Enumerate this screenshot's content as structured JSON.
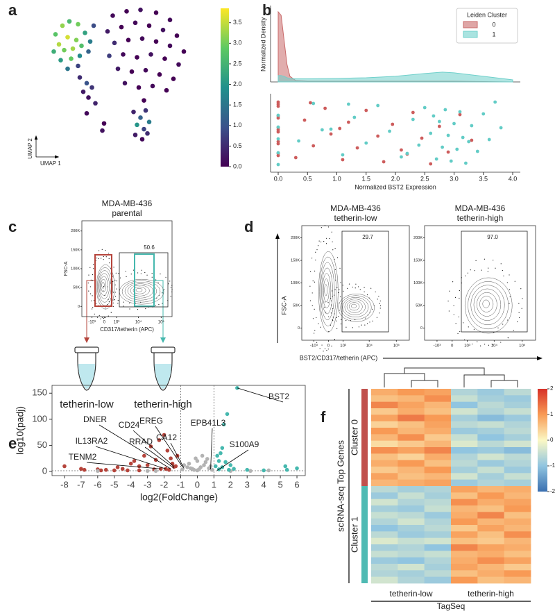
{
  "panel_letters": [
    "a",
    "b",
    "c",
    "d",
    "e",
    "f"
  ],
  "tubes": [
    "tetherin-low",
    "tetherin-high"
  ],
  "chart_data": [
    {
      "type": "scatter",
      "x_label": "UMAP 1",
      "y_label": "UMAP 2",
      "xlim": [
        0,
        10
      ],
      "ylim": [
        0,
        10
      ],
      "x": [
        1.2,
        1.6,
        2.0,
        2.5,
        1.4,
        1.9,
        2.4,
        2.9,
        1.1,
        1.7,
        2.2,
        2.7,
        3.2,
        1.5,
        2.1,
        2.6,
        3.1,
        1.9,
        2.5,
        3.4,
        2.6,
        3.0,
        2.8,
        3.3,
        3.1,
        3.5,
        3.0,
        3.9,
        4.0,
        4.5,
        5.3,
        6.1,
        7.0,
        7.8,
        4.2,
        5.0,
        5.8,
        6.6,
        7.4,
        8.2,
        4.6,
        5.4,
        6.2,
        7.0,
        7.8,
        8.6,
        4.3,
        5.1,
        5.9,
        6.7,
        7.5,
        8.3,
        4.8,
        5.6,
        6.4,
        7.2,
        8.0,
        5.2,
        6.0,
        6.8,
        7.6,
        6.3,
        5.7,
        6.1,
        6.4,
        5.9,
        6.3,
        6.6,
        5.8,
        6.2,
        6.5
      ],
      "y": [
        8.0,
        8.6,
        8.9,
        8.7,
        7.3,
        7.8,
        7.6,
        8.1,
        6.8,
        6.9,
        7.0,
        7.2,
        7.5,
        6.2,
        6.3,
        6.5,
        6.8,
        5.6,
        5.8,
        8.6,
        5.0,
        4.6,
        4.0,
        4.3,
        3.6,
        3.2,
        2.5,
        1.3,
        1.8,
        9.3,
        9.6,
        9.7,
        9.5,
        9.0,
        8.2,
        8.5,
        8.8,
        8.6,
        8.3,
        7.9,
        7.4,
        7.6,
        7.7,
        7.5,
        7.2,
        6.8,
        6.5,
        6.6,
        6.4,
        6.6,
        6.3,
        5.9,
        5.6,
        5.4,
        5.5,
        5.2,
        4.9,
        4.6,
        4.3,
        4.4,
        4.1,
        3.4,
        2.6,
        2.2,
        2.7,
        1.7,
        1.4,
        1.9,
        1.0,
        0.7,
        1.1
      ],
      "values": [
        2.8,
        3.2,
        2.6,
        3.0,
        3.4,
        3.6,
        3.1,
        2.2,
        2.4,
        3.0,
        3.3,
        2.7,
        1.6,
        2.1,
        2.9,
        1.8,
        1.2,
        1.5,
        0.8,
        0.9,
        0.5,
        1.0,
        0.3,
        0.6,
        0.2,
        0.4,
        0.1,
        0.2,
        0.0,
        0.1,
        0.0,
        0.2,
        0.0,
        0.1,
        0.3,
        0.0,
        0.1,
        0.0,
        0.2,
        0.0,
        0.5,
        0.0,
        0.1,
        0.0,
        0.1,
        0.0,
        0.7,
        0.1,
        0.0,
        0.2,
        0.0,
        0.1,
        0.3,
        0.0,
        0.1,
        0.0,
        0.0,
        0.2,
        0.0,
        0.1,
        0.0,
        0.0,
        0.4,
        1.2,
        0.6,
        2.0,
        0.8,
        1.6,
        0.3,
        0.1,
        0.5
      ],
      "clim": [
        0,
        3.85
      ],
      "cticks": [
        {
          "value": 0,
          "label": "0.0"
        },
        0.5,
        {
          "value": 1,
          "label": "1.0"
        },
        1.5,
        {
          "value": 2,
          "label": "2.0"
        },
        2.5,
        {
          "value": 3,
          "label": "3.0"
        },
        3.5
      ]
    },
    {
      "type": "area",
      "y_label": "Normalized Density",
      "legend_title": "Leiden Cluster",
      "xlim": [
        -0.13,
        4.13
      ],
      "ylim": [
        0,
        1.05
      ],
      "x": [
        0,
        0.05,
        0.1,
        0.15,
        0.2,
        0.3,
        0.5,
        1,
        1.5,
        2,
        2.5,
        2.8,
        3,
        3.5,
        4
      ],
      "series": [
        {
          "name": "0",
          "color": "#c96a6a",
          "values": [
            1.0,
            0.95,
            0.6,
            0.25,
            0.08,
            0.02,
            0.01,
            0.01,
            0.01,
            0.01,
            0.01,
            0.01,
            0.01,
            0.005,
            0
          ]
        },
        {
          "name": "1",
          "color": "#6fd0cb",
          "values": [
            0.09,
            0.09,
            0.08,
            0.06,
            0.05,
            0.045,
            0.045,
            0.05,
            0.06,
            0.08,
            0.12,
            0.14,
            0.13,
            0.08,
            0.03
          ]
        }
      ]
    },
    {
      "type": "strip",
      "x_label": "Normalized BST2 Expression",
      "xlim": [
        -0.13,
        4.13
      ],
      "xticks": [
        {
          "value": 0,
          "label": "0.0"
        },
        0.5,
        {
          "value": 1,
          "label": "1.0"
        },
        1.5,
        {
          "value": 2,
          "label": "2.0"
        },
        2.5,
        {
          "value": 3,
          "label": "3.0"
        },
        3.5,
        {
          "value": 4,
          "label": "4.0"
        }
      ],
      "series": [
        {
          "color": "#cd5c5c",
          "values": [
            0,
            0,
            0,
            0,
            0,
            0,
            0,
            0,
            0,
            0,
            0,
            0,
            0.3,
            0.45,
            0.6,
            0.8,
            0.9,
            1.1,
            1.2,
            1.35,
            1.5,
            1.7,
            1.8,
            1.95,
            2.1,
            2.3,
            2.45,
            2.6,
            2.75,
            2.9,
            3.1,
            3.3,
            0.55,
            1.05,
            2.2
          ]
        },
        {
          "color": "#62ccc6",
          "values": [
            0,
            0,
            0,
            0,
            0,
            0.35,
            0.6,
            0.9,
            1.1,
            1.3,
            1.5,
            1.7,
            1.9,
            2.1,
            2.3,
            2.4,
            2.5,
            2.6,
            2.7,
            2.75,
            2.8,
            2.85,
            2.9,
            2.95,
            3.0,
            3.05,
            3.1,
            3.15,
            3.2,
            3.3,
            3.4,
            3.5,
            3.6,
            3.7,
            3.8,
            2.2,
            2.65,
            3.25,
            1.2,
            0.75
          ]
        }
      ]
    },
    {
      "type": "contour",
      "title": "MDA-MB-436",
      "subtitle": "parental",
      "x_label": "CD317/tetherin (APC)",
      "y_label": "FSC-A",
      "xscale": "biexponential",
      "xlim": [
        -3000,
        300000
      ],
      "ylim": [
        -27000,
        227000
      ],
      "xticks": [
        {
          "value": -1000,
          "label": "-10³"
        },
        0,
        {
          "value": 1000,
          "label": "10³"
        },
        {
          "value": 10000,
          "label": "10⁴"
        },
        {
          "value": 100000,
          "label": "10⁵"
        }
      ],
      "yticks": [
        0,
        {
          "value": 50000,
          "label": "50K"
        },
        {
          "value": 100000,
          "label": "100K"
        },
        {
          "value": 150000,
          "label": "150K"
        },
        {
          "value": 200000,
          "label": "200K"
        }
      ],
      "gate_label": "50.6"
    },
    {
      "type": "contour",
      "title": "MDA-MB-436",
      "subtitle": "tetherin-low",
      "x_label": "BST2/CD317/tetherin (APC)",
      "y_label": "FSC-A",
      "xscale": "biexponential",
      "xlim": [
        -3000,
        300000
      ],
      "ylim": [
        -27000,
        227000
      ],
      "xticks": [
        {
          "value": -1000,
          "label": "-10³"
        },
        0,
        {
          "value": 1000,
          "label": "10³"
        },
        {
          "value": 10000,
          "label": "10⁴"
        },
        {
          "value": 100000,
          "label": "10⁵"
        }
      ],
      "yticks": [
        0,
        {
          "value": 50000,
          "label": "50K"
        },
        {
          "value": 100000,
          "label": "100K"
        },
        {
          "value": 150000,
          "label": "150K"
        },
        {
          "value": 200000,
          "label": "200K"
        }
      ],
      "gate_label": "29.7"
    },
    {
      "type": "contour",
      "title": "MDA-MB-436",
      "subtitle": "tetherin-high",
      "xscale": "biexponential",
      "xlim": [
        -3000,
        300000
      ],
      "ylim": [
        -27000,
        227000
      ],
      "xticks": [
        {
          "value": -1000,
          "label": "-10³"
        },
        0,
        {
          "value": 1000,
          "label": "10³"
        },
        {
          "value": 10000,
          "label": "10⁴"
        },
        {
          "value": 100000,
          "label": "10⁵"
        }
      ],
      "yticks": [
        0,
        {
          "value": 50000,
          "label": "50K"
        },
        {
          "value": 100000,
          "label": "100K"
        },
        {
          "value": 150000,
          "label": "150K"
        },
        {
          "value": 200000,
          "label": "200K"
        }
      ],
      "gate_label": "97.0"
    },
    {
      "type": "scatter",
      "x_label": "log2(FoldChange)",
      "y_label": "log10(padj)",
      "xlim": [
        -8.75,
        6.5
      ],
      "ylim": [
        -8,
        165
      ],
      "xticks": [
        -8,
        -7,
        -6,
        -5,
        -4,
        -3,
        -2,
        -1,
        0,
        1,
        2,
        3,
        4,
        5,
        6
      ],
      "yticks": [
        0,
        50,
        100,
        150
      ],
      "vlines": [
        -1,
        1
      ],
      "hline": 1.3,
      "series": [
        {
          "color": "#b5443b",
          "x": [
            -8,
            -7,
            -6.8,
            -6,
            -5.5,
            -5,
            -4.8,
            -4.5,
            -4,
            -3.8,
            -3.5,
            -3.2,
            -3,
            -2.8,
            -2.5,
            -2.3,
            -2,
            -1.8,
            -1.6,
            -1.5,
            -1.3,
            -1.2,
            -3.5,
            -2.6,
            -1.7,
            -4.2,
            -5.8,
            -2.2,
            -1.9,
            -1.4
          ],
          "values": [
            10,
            5,
            3,
            4,
            3,
            2,
            8,
            5,
            15,
            20,
            10,
            30,
            12,
            48,
            22,
            60,
            70,
            40,
            25,
            15,
            10,
            30,
            2,
            4,
            3,
            2,
            2,
            5,
            5,
            9
          ]
        },
        {
          "color": "#b3b3b3",
          "x": [
            -6,
            -3,
            0,
            0.3,
            -0.5,
            0.5,
            0.8,
            -0.8,
            0.2,
            -0.3,
            0,
            4.3,
            2,
            -0.1,
            0.6,
            -0.6,
            0.4,
            -0.2,
            0.1,
            -0.4,
            0.7,
            0.9,
            -0.9,
            3.2,
            -2.5
          ],
          "values": [
            1,
            1,
            20,
            30,
            15,
            18,
            10,
            12,
            8,
            5,
            2,
            2,
            1,
            25,
            24,
            8,
            12,
            3,
            4,
            6,
            6,
            3,
            4,
            1,
            1
          ]
        },
        {
          "color": "#45b8ae",
          "x": [
            2.4,
            1.8,
            1.6,
            1.5,
            1.4,
            1.2,
            1.3,
            1.7,
            2,
            1.1,
            1.5,
            2.2,
            3,
            4,
            5.3,
            5.4,
            6,
            1.9,
            1.3
          ],
          "values": [
            160,
            110,
            90,
            45,
            35,
            30,
            20,
            18,
            12,
            10,
            8,
            5,
            3,
            2,
            10,
            3,
            6,
            3,
            4
          ]
        }
      ],
      "annotations": [
        {
          "text": "BST2",
          "x": 2.4,
          "y": 160
        },
        {
          "text": "EPB41L3",
          "x": 0.8,
          "y": 4
        },
        {
          "text": "S100A9",
          "x": 1.2,
          "y": 2
        },
        {
          "text": "EREG",
          "x": -0.9,
          "y": 9
        },
        {
          "text": "CA12",
          "x": -0.8,
          "y": 6
        },
        {
          "text": "CD24",
          "x": -1.4,
          "y": 9
        },
        {
          "text": "DNER",
          "x": -1.6,
          "y": 5
        },
        {
          "text": "RRAD",
          "x": -1.4,
          "y": 6
        },
        {
          "text": "IL13RA2",
          "x": -1.9,
          "y": 5
        },
        {
          "text": "TENM2",
          "x": -2.2,
          "y": 5
        }
      ]
    },
    {
      "type": "heatmap",
      "y_label": "scRNA-seq Top Genes",
      "x_label": "TagSeq",
      "col_groups": [
        "tetherin-low",
        "tetherin-high"
      ],
      "clim": [
        -2,
        2
      ],
      "cticks": [
        2,
        1,
        0,
        -1,
        -2
      ],
      "groups": [
        {
          "name": "Cluster 0",
          "color": "#c0504d",
          "rows": [
            [
              0.8,
              1.0,
              0.9,
              -0.7,
              -0.9,
              -0.6
            ],
            [
              0.6,
              0.7,
              1.1,
              -0.5,
              -0.8,
              -0.9
            ],
            [
              1.2,
              0.9,
              0.7,
              -1.0,
              -0.6,
              -0.8
            ],
            [
              0.5,
              0.8,
              0.6,
              -0.4,
              -0.7,
              -0.5
            ],
            [
              0.9,
              1.3,
              1.0,
              -0.8,
              -1.1,
              -0.9
            ],
            [
              0.4,
              0.6,
              0.9,
              -0.6,
              -0.5,
              -0.7
            ],
            [
              1.0,
              0.7,
              0.8,
              -0.9,
              -0.8,
              -0.6
            ],
            [
              0.7,
              1.1,
              0.5,
              -0.5,
              -1.0,
              -0.8
            ],
            [
              0.3,
              0.5,
              0.7,
              -0.3,
              -0.6,
              -0.4
            ],
            [
              1.1,
              0.9,
              1.2,
              -1.0,
              -0.9,
              -1.1
            ],
            [
              0.6,
              0.4,
              0.8,
              -0.7,
              -0.4,
              -0.6
            ],
            [
              0.8,
              1.0,
              0.6,
              -0.6,
              -0.9,
              -0.7
            ],
            [
              0.5,
              0.7,
              1.0,
              -0.8,
              -0.5,
              -0.9
            ],
            [
              0.9,
              0.6,
              0.7,
              -0.4,
              -0.8,
              -0.5
            ],
            [
              0.7,
              0.8,
              0.9,
              -0.9,
              -0.7,
              -0.8
            ]
          ]
        },
        {
          "name": "Cluster 1",
          "color": "#4fbab3",
          "rows": [
            [
              -0.6,
              -0.8,
              -0.7,
              0.9,
              0.7,
              0.8
            ],
            [
              -0.9,
              -0.5,
              -0.8,
              0.6,
              1.0,
              0.7
            ],
            [
              -0.4,
              -0.7,
              -0.6,
              1.1,
              0.8,
              0.9
            ],
            [
              -0.8,
              -0.9,
              -0.5,
              0.7,
              0.6,
              1.0
            ],
            [
              -0.5,
              -0.6,
              -0.9,
              0.8,
              1.2,
              0.6
            ],
            [
              -0.7,
              -0.4,
              -0.7,
              1.0,
              0.7,
              0.8
            ],
            [
              -1.0,
              -0.8,
              -0.6,
              0.5,
              0.9,
              0.7
            ],
            [
              -0.6,
              -0.9,
              -0.8,
              0.9,
              0.6,
              1.1
            ],
            [
              -0.3,
              -0.5,
              -0.4,
              0.6,
              0.5,
              0.7
            ],
            [
              -0.8,
              -0.7,
              -1.0,
              1.2,
              0.9,
              0.8
            ],
            [
              -0.5,
              -0.6,
              -0.5,
              0.7,
              0.8,
              0.6
            ],
            [
              -0.9,
              -1.0,
              -0.7,
              0.8,
              1.1,
              0.9
            ],
            [
              -0.6,
              -0.4,
              -0.8,
              0.9,
              0.7,
              0.5
            ],
            [
              -0.7,
              -0.8,
              -0.6,
              0.6,
              0.8,
              1.0
            ],
            [
              -0.4,
              -0.7,
              -0.9,
              1.0,
              0.6,
              0.7
            ]
          ]
        }
      ]
    }
  ]
}
